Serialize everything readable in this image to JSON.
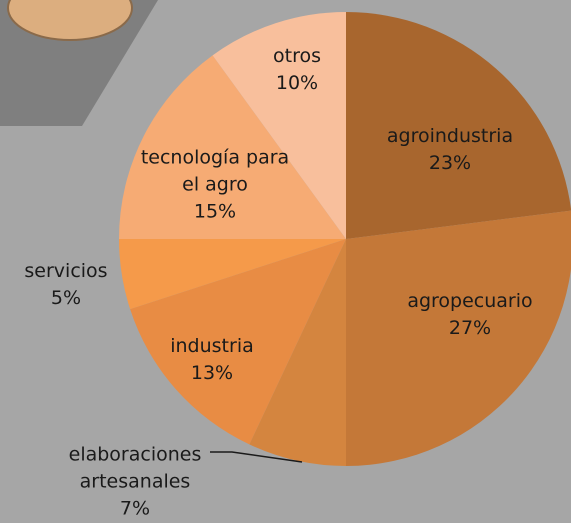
{
  "chart_data": {
    "type": "pie",
    "categories": [
      "agroindustria",
      "agropecuario",
      "elaboraciones artesanales",
      "industria",
      "servicios",
      "tecnología para el agro",
      "otros"
    ],
    "values": [
      23,
      27,
      7,
      13,
      5,
      15,
      10
    ],
    "value_labels": [
      "23%",
      "27%",
      "7%",
      "13%",
      "5%",
      "15%",
      "10%"
    ],
    "colors": [
      "#a8662e",
      "#c47838",
      "#d4853f",
      "#e88c44",
      "#f59a4a",
      "#f6ab74",
      "#f8bf9c"
    ]
  }
}
